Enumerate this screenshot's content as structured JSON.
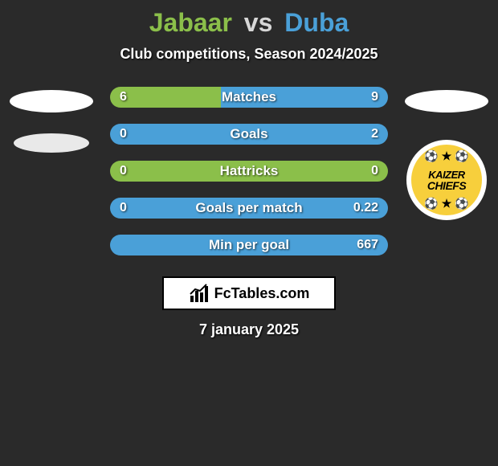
{
  "background_color": "#2a2a2a",
  "title": {
    "player1": "Jabaar",
    "vs": "vs",
    "player2": "Duba",
    "color1": "#8bbf4a",
    "color_vs": "#d7d7d7",
    "color2": "#4aa0d8"
  },
  "subtitle": "Club competitions, Season 2024/2025",
  "left_side": {
    "ellipse1_color": "#ffffff",
    "ellipse2_color": "#e9e9e9"
  },
  "right_side": {
    "ellipse1_color": "#ffffff",
    "badge": {
      "bg": "#f7cf3c",
      "border": "#ffffff",
      "line1": "KAIZER",
      "line2": "CHIEFS",
      "deco": "⚽ ★ ⚽"
    }
  },
  "bars": {
    "color_left": "#8bbf4a",
    "color_right": "#4aa0d8",
    "label_fontsize": 17,
    "val_fontsize": 16,
    "items": [
      {
        "label": "Matches",
        "left_val": "6",
        "right_val": "9",
        "left_pct": 40,
        "right_pct": 60
      },
      {
        "label": "Goals",
        "left_val": "0",
        "right_val": "2",
        "left_pct": 0,
        "right_pct": 100
      },
      {
        "label": "Hattricks",
        "left_val": "0",
        "right_val": "0",
        "left_pct": 100,
        "right_pct": 0
      },
      {
        "label": "Goals per match",
        "left_val": "0",
        "right_val": "0.22",
        "left_pct": 0,
        "right_pct": 100
      },
      {
        "label": "Min per goal",
        "left_val": "",
        "right_val": "667",
        "left_pct": 0,
        "right_pct": 100
      }
    ]
  },
  "brand": {
    "text": "FcTables.com",
    "box_bg": "#ffffff",
    "box_border": "#000000"
  },
  "date": "7 january 2025"
}
